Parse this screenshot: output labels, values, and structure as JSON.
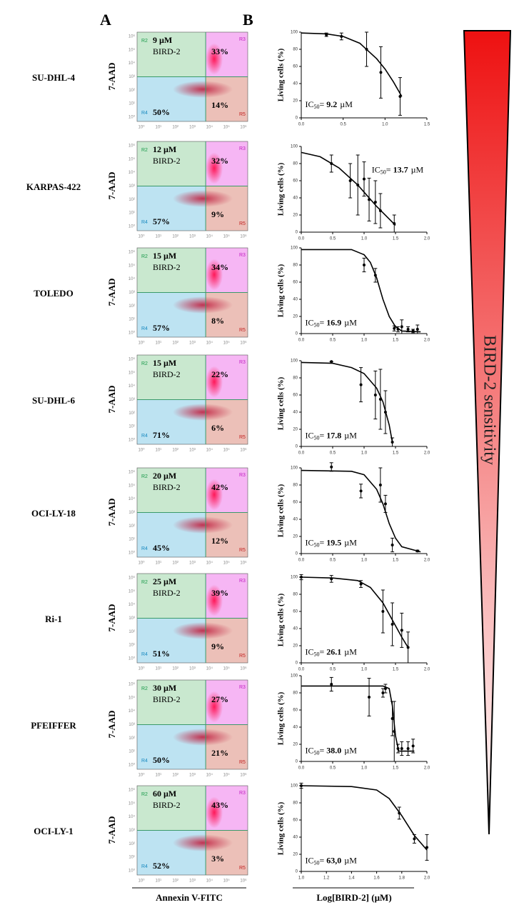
{
  "panel_labels": [
    "A",
    "B"
  ],
  "sensitivity_label": "BIRD-2 sensitivity",
  "flow_cytometry": {
    "y_label": "7-AAD",
    "x_label": "Annexin V-FITC",
    "gates": [
      "R2",
      "R3",
      "R4",
      "R5"
    ],
    "axis_ticks": [
      "10⁰",
      "10¹",
      "10²",
      "10³",
      "10⁴",
      "10⁵",
      "10⁶"
    ],
    "rows": [
      {
        "cell_line": "SU-DHL-4",
        "dose": "9 µM",
        "drug": "BIRD-2",
        "r3": "33%",
        "r4": "50%",
        "r5": "14%"
      },
      {
        "cell_line": "KARPAS-422",
        "dose": "12 µM",
        "drug": "BIRD-2",
        "r3": "32%",
        "r4": "57%",
        "r5": "9%"
      },
      {
        "cell_line": "TOLEDO",
        "dose": "15 µM",
        "drug": "BIRD-2",
        "r3": "34%",
        "r4": "57%",
        "r5": "8%"
      },
      {
        "cell_line": "SU-DHL-6",
        "dose": "15 µM",
        "drug": "BIRD-2",
        "r3": "22%",
        "r4": "71%",
        "r5": "6%"
      },
      {
        "cell_line": "OCI-LY-18",
        "dose": "20 µM",
        "drug": "BIRD-2",
        "r3": "42%",
        "r4": "45%",
        "r5": "12%"
      },
      {
        "cell_line": "Ri-1",
        "dose": "25 µM",
        "drug": "BIRD-2",
        "r3": "39%",
        "r4": "51%",
        "r5": "9%"
      },
      {
        "cell_line": "PFEIFFER",
        "dose": "30 µM",
        "drug": "BIRD-2",
        "r3": "27%",
        "r4": "50%",
        "r5": "21%"
      },
      {
        "cell_line": "OCI-LY-1",
        "dose": "60 µM",
        "drug": "BIRD-2",
        "r3": "43%",
        "r4": "52%",
        "r5": "3%"
      }
    ]
  },
  "dose_response_x_label": "Log[BIRD-2] (µM)",
  "chart_data": [
    {
      "type": "scatter",
      "y_label": "Living cells (%)",
      "x": [
        0.3,
        0.48,
        0.78,
        0.95,
        1.18
      ],
      "values": [
        97,
        95,
        80,
        53,
        25
      ],
      "errors": [
        2,
        4,
        20,
        30,
        22
      ],
      "fit": {
        "x": [
          0,
          0.3,
          0.5,
          0.7,
          0.9,
          1.0,
          1.1,
          1.2
        ],
        "values": [
          99,
          98,
          95,
          87,
          69,
          57,
          42,
          25
        ]
      },
      "xlim": [
        0,
        1.5
      ],
      "xticks": [
        {
          "value": 0,
          "label": "0.0"
        },
        0.5,
        {
          "value": 1,
          "label": "1.0"
        },
        1.5
      ],
      "ylim": [
        0,
        100
      ],
      "yticks": [
        0,
        20,
        40,
        60,
        80,
        100
      ],
      "ic50": {
        "prefix": "IC",
        "subscript": "50",
        "equals": "=",
        "value": "9.2",
        "unit": "µM"
      }
    },
    {
      "type": "scatter",
      "y_label": "Living cells (%)",
      "x": [
        0.48,
        0.78,
        0.9,
        1.0,
        1.08,
        1.18,
        1.26,
        1.48
      ],
      "values": [
        80,
        60,
        55,
        62,
        38,
        35,
        25,
        10
      ],
      "errors": [
        10,
        20,
        35,
        20,
        25,
        25,
        20,
        10
      ],
      "fit": {
        "x": [
          0,
          0.3,
          0.6,
          0.9,
          1.2,
          1.5
        ],
        "values": [
          93,
          88,
          75,
          55,
          30,
          8
        ]
      },
      "xlim": [
        0,
        2
      ],
      "xticks": [
        {
          "value": 0,
          "label": "0.0"
        },
        0.5,
        {
          "value": 1,
          "label": "1.0"
        },
        1.5,
        {
          "value": 2,
          "label": "2.0"
        }
      ],
      "ylim": [
        0,
        100
      ],
      "yticks": [
        0,
        20,
        40,
        60,
        80,
        100
      ],
      "ic50": {
        "prefix": "IC",
        "subscript": "50",
        "equals": "=",
        "value": "13.7",
        "unit": "µM"
      }
    },
    {
      "type": "scatter",
      "y_label": "Living cells (%)",
      "x": [
        1.0,
        1.18,
        1.48,
        1.54,
        1.6,
        1.7,
        1.78,
        1.85
      ],
      "values": [
        80,
        68,
        6,
        5,
        8,
        5,
        3,
        5
      ],
      "errors": [
        8,
        8,
        3,
        3,
        8,
        3,
        2,
        5
      ],
      "fit": {
        "x": [
          0,
          0.8,
          1.0,
          1.1,
          1.2,
          1.3,
          1.4,
          1.5,
          1.6,
          1.9
        ],
        "values": [
          98,
          98,
          92,
          83,
          65,
          40,
          20,
          8,
          3,
          2
        ]
      },
      "xlim": [
        0,
        2
      ],
      "xticks": [
        {
          "value": 0,
          "label": "0.0"
        },
        0.5,
        {
          "value": 1,
          "label": "1.0"
        },
        1.5,
        {
          "value": 2,
          "label": "2.0"
        }
      ],
      "ylim": [
        0,
        100
      ],
      "yticks": [
        0,
        20,
        40,
        60,
        80,
        100
      ],
      "ic50": {
        "prefix": "IC",
        "subscript": "50",
        "equals": "=",
        "value": "16.9",
        "unit": "µM"
      }
    },
    {
      "type": "scatter",
      "y_label": "Living cells (%)",
      "x": [
        0.48,
        0.95,
        1.18,
        1.26,
        1.34,
        1.45
      ],
      "values": [
        99,
        72,
        60,
        55,
        40,
        5
      ],
      "errors": [
        0,
        20,
        28,
        35,
        25,
        5
      ],
      "fit": {
        "x": [
          0,
          0.5,
          0.8,
          1.0,
          1.2,
          1.3,
          1.4,
          1.45
        ],
        "values": [
          98,
          97,
          92,
          85,
          68,
          52,
          25,
          5
        ]
      },
      "xlim": [
        0,
        2
      ],
      "xticks": [
        {
          "value": 0,
          "label": "0.0"
        },
        0.5,
        {
          "value": 1,
          "label": "1.0"
        },
        1.5,
        {
          "value": 2,
          "label": "2.0"
        }
      ],
      "ylim": [
        0,
        100
      ],
      "yticks": [
        0,
        20,
        40,
        60,
        80,
        100
      ],
      "ic50": {
        "prefix": "IC",
        "subscript": "50",
        "equals": "=",
        "value": "17.8",
        "unit": "µM"
      }
    },
    {
      "type": "scatter",
      "y_label": "Living cells (%)",
      "x": [
        0.48,
        0.95,
        1.26,
        1.34,
        1.45,
        1.85
      ],
      "values": [
        101,
        73,
        80,
        58,
        10,
        3
      ],
      "errors": [
        5,
        8,
        20,
        10,
        8,
        1
      ],
      "fit": {
        "x": [
          0,
          0.8,
          1.0,
          1.2,
          1.3,
          1.4,
          1.5,
          1.6,
          1.9
        ],
        "values": [
          97,
          96,
          92,
          75,
          58,
          35,
          18,
          8,
          2
        ]
      },
      "xlim": [
        0,
        2
      ],
      "xticks": [
        {
          "value": 0,
          "label": "0.0"
        },
        0.5,
        {
          "value": 1,
          "label": "1.0"
        },
        1.5,
        {
          "value": 2,
          "label": "2.0"
        }
      ],
      "ylim": [
        0,
        100
      ],
      "yticks": [
        0,
        20,
        40,
        60,
        80,
        100
      ],
      "ic50": {
        "prefix": "IC",
        "subscript": "50",
        "equals": "=",
        "value": "19.5",
        "unit": "µM"
      }
    },
    {
      "type": "scatter",
      "y_label": "Living cells (%)",
      "x": [
        0,
        0.48,
        0.95,
        1.3,
        1.45,
        1.6,
        1.7
      ],
      "values": [
        100,
        98,
        92,
        60,
        45,
        38,
        18
      ],
      "errors": [
        3,
        4,
        4,
        25,
        25,
        20,
        18
      ],
      "fit": {
        "x": [
          0,
          0.5,
          0.9,
          1.1,
          1.3,
          1.45,
          1.6,
          1.7
        ],
        "values": [
          100,
          99,
          96,
          88,
          70,
          50,
          30,
          18
        ]
      },
      "xlim": [
        0,
        2
      ],
      "xticks": [
        {
          "value": 0,
          "label": "0.0"
        },
        0.5,
        {
          "value": 1,
          "label": "1.0"
        },
        1.5,
        {
          "value": 2,
          "label": "2.0"
        }
      ],
      "ylim": [
        0,
        100
      ],
      "yticks": [
        0,
        20,
        40,
        60,
        80,
        100
      ],
      "ic50": {
        "prefix": "IC",
        "subscript": "50",
        "equals": "=",
        "value": "26.1",
        "unit": "µM"
      }
    },
    {
      "type": "scatter",
      "y_label": "Living cells (%)",
      "x": [
        0.48,
        1.08,
        1.3,
        1.34,
        1.45,
        1.48,
        1.54,
        1.6,
        1.7,
        1.78
      ],
      "values": [
        90,
        75,
        80,
        85,
        50,
        35,
        15,
        15,
        15,
        18
      ],
      "errors": [
        8,
        22,
        5,
        5,
        20,
        35,
        5,
        8,
        8,
        8
      ],
      "fit": {
        "x": [
          0,
          1.3,
          1.4,
          1.45,
          1.5,
          1.55,
          1.6,
          1.8
        ],
        "values": [
          88,
          88,
          85,
          65,
          30,
          12,
          12,
          12
        ]
      },
      "xlim": [
        0,
        2
      ],
      "xticks": [
        {
          "value": 0,
          "label": "0.0"
        },
        0.5,
        {
          "value": 1,
          "label": "1.0"
        },
        1.5,
        {
          "value": 2,
          "label": "2.0"
        }
      ],
      "ylim": [
        0,
        100
      ],
      "yticks": [
        0,
        20,
        40,
        60,
        80,
        100
      ],
      "ic50": {
        "prefix": "IC",
        "subscript": "50",
        "equals": "=",
        "value": "38.0",
        "unit": "µM"
      }
    },
    {
      "type": "scatter",
      "y_label": "Living cells (%)",
      "x": [
        1.0,
        1.78,
        1.9,
        2.0
      ],
      "values": [
        100,
        68,
        38,
        28
      ],
      "errors": [
        3,
        7,
        5,
        15
      ],
      "fit": {
        "x": [
          1.0,
          1.4,
          1.6,
          1.7,
          1.8,
          1.9,
          2.0
        ],
        "values": [
          100,
          99,
          95,
          85,
          65,
          42,
          25
        ]
      },
      "xlim": [
        1,
        2
      ],
      "xticks": [
        {
          "value": 1,
          "label": "1.0"
        },
        1.2,
        1.4,
        1.6,
        1.8,
        {
          "value": 2,
          "label": "2.0"
        }
      ],
      "ylim": [
        0,
        100
      ],
      "yticks": [
        0,
        20,
        40,
        60,
        80,
        100
      ],
      "ic50": {
        "prefix": "IC",
        "subscript": "50",
        "equals": "=",
        "value": "63,0",
        "unit": "µM"
      }
    }
  ]
}
